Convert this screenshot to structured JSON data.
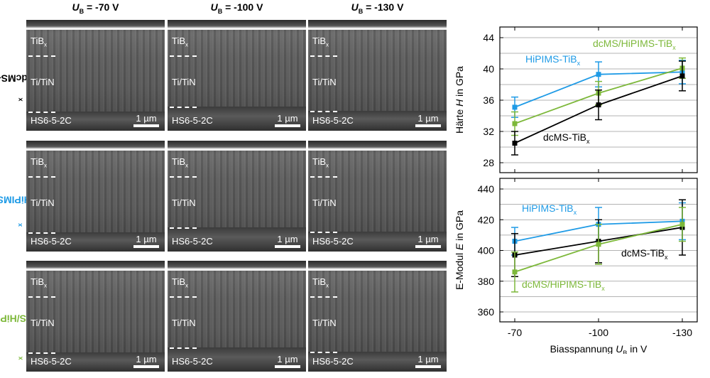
{
  "sem_figure": {
    "column_headers": [
      {
        "sym": "U",
        "sub": "B",
        "value": " = -70 V"
      },
      {
        "sym": "U",
        "sub": "B",
        "value": " = -100 V"
      },
      {
        "sym": "U",
        "sub": "B",
        "value": " = -130 V"
      }
    ],
    "row_labels": [
      {
        "main": "dcMS-TiB",
        "sub": "x",
        "color": "#000000"
      },
      {
        "main": "HiPIMS-TiB",
        "sub": "x",
        "color": "#1f9be6"
      },
      {
        "main": "dcMS/HiPIMS-TiB",
        "sub": "x",
        "color": "#7db83a"
      }
    ],
    "layer_labels": {
      "top": "TiB",
      "top_sub": "x",
      "middle": "Ti/TiN",
      "substrate": "HS6-5-2C"
    },
    "scale_bar": "1 µm"
  },
  "colors": {
    "dcms": "#000000",
    "hipims": "#1f9be6",
    "mixed": "#7db83a"
  },
  "chart_data": [
    {
      "type": "line",
      "ylabel_parts": [
        "Härte ",
        "H",
        " in GPa"
      ],
      "ylim": [
        28,
        44
      ],
      "yticks": [
        28,
        32,
        36,
        40,
        44
      ],
      "categories": [
        "-70",
        "-100",
        "-130"
      ],
      "series": [
        {
          "name": "HiPIMS-TiB",
          "sub": "x",
          "key": "hipims",
          "values": [
            35.1,
            39.3,
            39.6
          ],
          "err": [
            1.3,
            1.6,
            1.5
          ]
        },
        {
          "name": "dcMS/HiPIMS-TiB",
          "sub": "x",
          "key": "mixed",
          "values": [
            33.0,
            36.9,
            40.1
          ],
          "err": [
            1.5,
            1.5,
            1.3
          ]
        },
        {
          "name": "dcMS-TiB",
          "sub": "x",
          "key": "dcms",
          "values": [
            30.5,
            35.4,
            39.1
          ],
          "err": [
            1.5,
            1.9,
            1.9
          ]
        }
      ]
    },
    {
      "type": "line",
      "ylabel_parts": [
        "E-Modul ",
        "E",
        " in GPa"
      ],
      "ylim": [
        360,
        440
      ],
      "yticks": [
        360,
        380,
        400,
        420,
        440
      ],
      "categories": [
        "-70",
        "-100",
        "-130"
      ],
      "xlabel_parts": [
        "Biasspannung ",
        "U",
        "B",
        " in V"
      ],
      "series": [
        {
          "name": "HiPIMS-TiB",
          "sub": "x",
          "key": "hipims",
          "values": [
            406,
            417,
            419
          ],
          "err": [
            9,
            11,
            12
          ]
        },
        {
          "name": "dcMS-TiB",
          "sub": "x",
          "key": "dcms",
          "values": [
            397,
            406,
            415
          ],
          "err": [
            14,
            14,
            18
          ]
        },
        {
          "name": "dcMS/HiPIMS-TiB",
          "sub": "x",
          "key": "mixed",
          "values": [
            386,
            404,
            417
          ],
          "err": [
            13,
            13,
            11
          ]
        }
      ]
    }
  ]
}
